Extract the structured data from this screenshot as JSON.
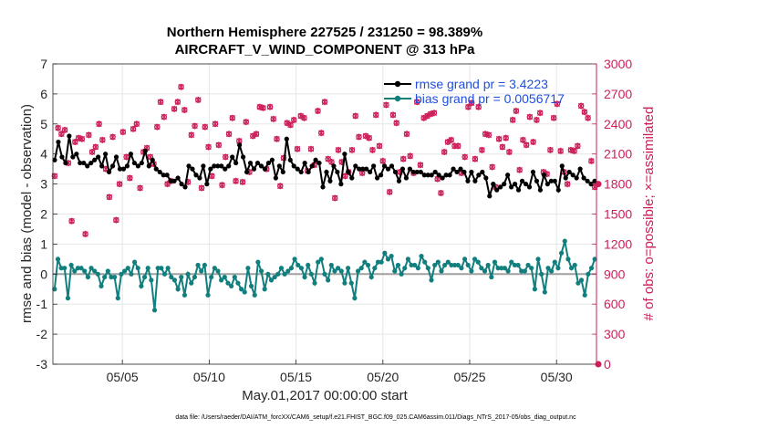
{
  "colors": {
    "rmse": "#000000",
    "bias": "#127f7f",
    "obs": "#cc1f5a",
    "legend_text": "#1f4fe0",
    "grid": "#e6e6e6",
    "zero_line": "#a0a0a0"
  },
  "chart_data": {
    "type": "line",
    "title": "Northern Hemisphere 227525 / 231250 = 98.389%",
    "subtitle": "AIRCRAFT_V_WIND_COMPONENT @ 313 hPa",
    "xlabel": "May.01,2017 00:00:00 start",
    "ylabel_left": "rmse and bias (model - observation)",
    "ylabel_right": "# of obs: o=possible; ×=assimilated",
    "footnote": "data file: /Users/raeder/DAI/ATM_forcXX/CAM6_setup/f.e21.FHIST_BGC.f09_025.CAM6assim.011/Diags_NTrS_2017-05/obs_diag_output.nc",
    "xlim": [
      1,
      32.3
    ],
    "ylim_left": [
      -3,
      7
    ],
    "ylim_right": [
      0,
      3000
    ],
    "x_ticks": [
      5,
      10,
      15,
      20,
      25,
      30
    ],
    "x_tick_labels": [
      "05/05",
      "05/10",
      "05/15",
      "05/20",
      "05/25",
      "05/30"
    ],
    "y_left_ticks": [
      "-3",
      "-2",
      "-1",
      "0",
      "1",
      "2",
      "3",
      "4",
      "5",
      "6",
      "7"
    ],
    "y_right_ticks": [
      "0",
      "300",
      "600",
      "900",
      "1200",
      "1500",
      "1800",
      "2100",
      "2400",
      "2700",
      "3000"
    ],
    "grid": true,
    "legend": {
      "location": "top-right",
      "entries": [
        "rmse grand pr = 3.4223",
        "bias grand pr = 0.0056717"
      ]
    },
    "series": [
      {
        "name": "rmse",
        "values": [
          3.8,
          4.4,
          3.9,
          3.7,
          4.6,
          3.9,
          4.0,
          3.7,
          3.7,
          3.6,
          3.7,
          3.8,
          3.9,
          3.6,
          4.0,
          3.4,
          3.6,
          3.9,
          3.5,
          3.5,
          3.6,
          4.0,
          3.7,
          3.6,
          3.7,
          4.1,
          3.6,
          3.8,
          3.5,
          3.4,
          3.3,
          3.3,
          3.1,
          3.1,
          3.2,
          3.0,
          2.9,
          3.6,
          3.5,
          3.3,
          3.2,
          3.6,
          3.0,
          3.5,
          3.6,
          3.6,
          3.6,
          3.5,
          3.6,
          3.9,
          3.7,
          4.3,
          3.9,
          3.4,
          3.7,
          3.5,
          3.7,
          3.6,
          3.5,
          3.7,
          3.8,
          3.2,
          3.6,
          3.4,
          4.5,
          3.8,
          3.6,
          3.5,
          3.4,
          3.7,
          3.4,
          3.6,
          3.8,
          3.7,
          2.9,
          3.4,
          3.1,
          3.6,
          3.4,
          3.0,
          4.0,
          3.4,
          3.2,
          3.6,
          3.5,
          3.5,
          3.5,
          3.4,
          3.6,
          3.2,
          3.3,
          3.6,
          3.5,
          3.6,
          3.4,
          3.1,
          3.5,
          3.2,
          3.5,
          3.4,
          3.4,
          3.4,
          3.3,
          3.3,
          3.3,
          3.4,
          3.3,
          3.2,
          3.3,
          3.3,
          3.5,
          3.4,
          3.5,
          3.4,
          3.1,
          3.4,
          3.1,
          3.3,
          3.4,
          3.2,
          2.6,
          3.0,
          2.8,
          2.9,
          3.0,
          3.3,
          2.9,
          3.0,
          2.8,
          3.1,
          3.0,
          2.9,
          3.4,
          3.1,
          2.8,
          3.3,
          3.0,
          3.1,
          3.1,
          2.8,
          3.6,
          3.2,
          3.4,
          3.3,
          3.2,
          3.5,
          3.2,
          3.1,
          3.0,
          3.1
        ],
        "color": "#000000"
      },
      {
        "name": "bias",
        "values": [
          -0.5,
          0.5,
          0.2,
          0.2,
          -0.8,
          0.3,
          0.1,
          0.2,
          0.2,
          0.1,
          -0.1,
          0.2,
          0.1,
          0.0,
          -0.4,
          -0.1,
          0.1,
          -0.1,
          -0.1,
          -0.8,
          0.0,
          0.1,
          0.2,
          0.0,
          0.4,
          0.2,
          -0.4,
          -0.1,
          0.2,
          -0.2,
          -1.2,
          0.2,
          0.2,
          0.0,
          0.2,
          -0.1,
          -0.2,
          -0.5,
          -0.1,
          -0.7,
          0.0,
          -0.3,
          -0.1,
          0.3,
          0.1,
          0.3,
          -0.7,
          -0.1,
          0.2,
          0.1,
          -0.2,
          -0.1,
          -0.3,
          -0.4,
          -0.1,
          -0.3,
          -0.5,
          -0.6,
          0.2,
          -0.4,
          -0.7,
          0.4,
          0.1,
          -0.5,
          0.0,
          -0.2,
          -0.1,
          0.0,
          0.2,
          0.0,
          0.1,
          0.2,
          0.5,
          0.3,
          0.2,
          -0.1,
          0.3,
          0.0,
          -0.3,
          0.4,
          0.5,
          0.0,
          -0.2,
          0.3,
          0.1,
          0.2,
          0.1,
          -0.3,
          0.2,
          -0.3,
          -0.8,
          0.1,
          0.2,
          0.4,
          0.3,
          -0.1,
          0.2,
          0.4,
          0.4,
          0.7,
          0.5,
          0.6,
          0.1,
          0.3,
          0.0,
          0.2,
          0.5,
          0.3,
          0.3,
          0.2,
          0.6,
          0.4,
          0.2,
          -0.2,
          0.3,
          0.4,
          0.1,
          0.3,
          0.4,
          0.3,
          0.3,
          0.3,
          0.2,
          0.5,
          0.3,
          0.1,
          0.5,
          0.4,
          0.2,
          0.1,
          0.3,
          -0.1,
          0.4,
          0.2,
          0.2,
          0.2,
          0.1,
          0.4,
          0.3,
          0.3,
          0.1,
          0.1,
          0.3,
          0.2,
          -0.5,
          0.5,
          0.0,
          -0.6,
          0.2,
          0.1,
          0.4,
          0.2,
          0.7,
          1.1,
          0.5,
          0.2,
          0.3,
          -0.3,
          -0.2,
          -0.7,
          0.0,
          0.2,
          0.5
        ],
        "color": "#127f7f"
      },
      {
        "name": "obs_possible",
        "values": [
          1880,
          2360,
          2300,
          2340,
          2010,
          1430,
          2220,
          2260,
          2250,
          1300,
          2290,
          2120,
          2170,
          2400,
          2240,
          1950,
          1670,
          2270,
          1440,
          1800,
          2320,
          2070,
          1860,
          2350,
          2400,
          1760,
          2120,
          2160,
          2070,
          2000,
          2370,
          2620,
          2470,
          1800,
          1830,
          2550,
          2620,
          2770,
          2540,
          1820,
          2290,
          2380,
          2640,
          1760,
          2370,
          2170,
          1880,
          2400,
          2190,
          1790,
          2070,
          2300,
          2460,
          1830,
          2230,
          1820,
          2420,
          1920,
          2280,
          2300,
          2570,
          2560,
          1950,
          2570,
          2450,
          2250,
          1780,
          2060,
          2410,
          2390,
          2440,
          2150,
          2480,
          2460,
          1930,
          2150,
          1990,
          2530,
          2310,
          2620,
          2050,
          2020,
          1660,
          2140,
          2020,
          1880,
          1920,
          2140,
          2480,
          2270,
          1910,
          2280,
          2260,
          2140,
          2490,
          2180,
          2030,
          2590,
          1720,
          2490,
          2410,
          1920,
          2050,
          2300,
          2080,
          1910,
          2620,
          1990,
          2460,
          2480,
          2500,
          2510,
          1850,
          1710,
          2120,
          2220,
          2240,
          2180,
          2180,
          1910,
          2070,
          2570,
          2610,
          2050,
          2570,
          2140,
          2300,
          2290,
          1970,
          1770,
          2250,
          2170,
          2260,
          2120,
          2440,
          2530,
          1940,
          2240,
          2190,
          2470,
          2220,
          2440,
          2510,
          1920,
          1900,
          2140,
          2460,
          2600,
          2130,
          1920,
          1800,
          2140,
          2130,
          2180,
          2580,
          2520,
          2460,
          2030,
          1770
        ],
        "color": "#cc1f5a"
      }
    ]
  }
}
